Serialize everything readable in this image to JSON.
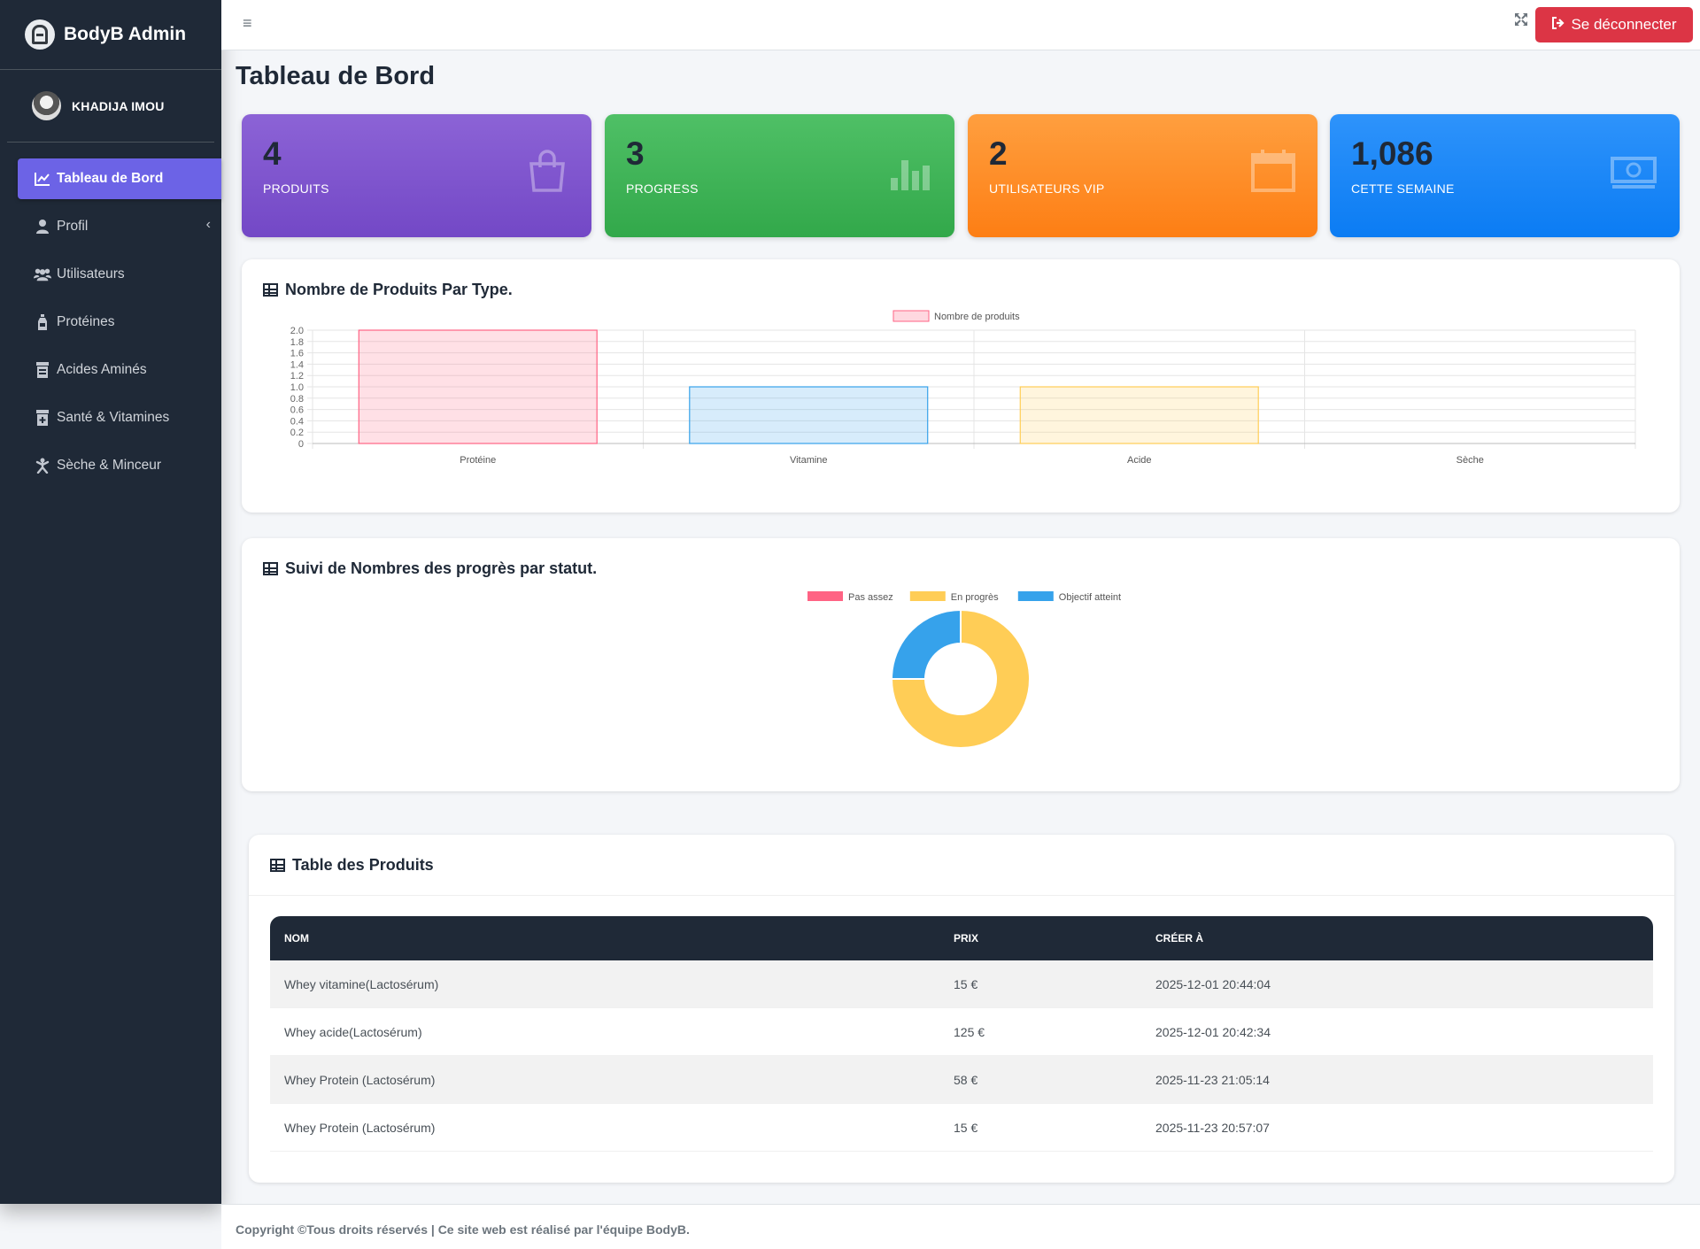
{
  "app": {
    "brand": "BodyB Admin"
  },
  "user": {
    "name": "KHADIJA IMOU"
  },
  "sidebar": {
    "items": [
      {
        "label": "Tableau de Bord",
        "icon": "chart-line-icon",
        "active": true
      },
      {
        "label": "Profil",
        "icon": "user-icon",
        "active": false
      },
      {
        "label": "Utilisateurs",
        "icon": "users-icon",
        "active": false
      },
      {
        "label": "Protéines",
        "icon": "bottle-icon",
        "active": false
      },
      {
        "label": "Acides Aminés",
        "icon": "jar-icon",
        "active": false
      },
      {
        "label": "Santé & Vitamines",
        "icon": "medical-jar-icon",
        "active": false
      },
      {
        "label": "Sèche & Minceur",
        "icon": "running-icon",
        "active": false
      }
    ]
  },
  "topbar": {
    "logout_label": "Se déconnecter"
  },
  "page": {
    "title": "Tableau de Bord"
  },
  "stats": [
    {
      "value": "4",
      "label": "PRODUITS",
      "icon": "shopping-bag-icon"
    },
    {
      "value": "3",
      "label": "PROGRESS",
      "icon": "bar-chart-icon"
    },
    {
      "value": "2",
      "label": "UTILISATEURS VIP",
      "icon": "calendar-icon"
    },
    {
      "value": "1,086",
      "label": "CETTE SEMAINE",
      "icon": "money-bill-icon"
    }
  ],
  "cards": {
    "bar_title": "Nombre de Produits Par Type.",
    "donut_title": "Suivi de Nombres des progrès par statut.",
    "table_title": "Table des Produits"
  },
  "chart_data": [
    {
      "type": "bar",
      "categories": [
        "Protéine",
        "Vitamine",
        "Acide",
        "Sèche"
      ],
      "series": [
        {
          "name": "Nombre de produits",
          "values": [
            2,
            1,
            1,
            0
          ]
        }
      ],
      "ylim": [
        0,
        2
      ],
      "yticks": [
        "0",
        "0.2",
        "0.4",
        "0.6",
        "0.8",
        "1.0",
        "1.2",
        "1.4",
        "1.6",
        "1.8",
        "2.0"
      ],
      "colors": [
        "#ff6384",
        "#36a2eb",
        "#ffcd56",
        "#4bc0c0"
      ],
      "legend": "top",
      "grid": true
    },
    {
      "type": "pie",
      "variant": "doughnut",
      "labels": [
        "Pas assez",
        "En progrès",
        "Objectif atteint"
      ],
      "values": [
        0,
        3,
        1
      ],
      "colors": [
        "#ff6384",
        "#ffcd56",
        "#36a2eb"
      ],
      "legend": "top"
    }
  ],
  "table": {
    "headers": [
      "NOM",
      "PRIX",
      "CRÉER À"
    ],
    "rows": [
      [
        "Whey vitamine(Lactosérum)",
        "15 €",
        "2025-12-01 20:44:04"
      ],
      [
        "Whey acide(Lactosérum)",
        "125 €",
        "2025-12-01 20:42:34"
      ],
      [
        "Whey Protein (Lactosérum)",
        "58 €",
        "2025-11-23 21:05:14"
      ],
      [
        "Whey Protein (Lactosérum)",
        "15 €",
        "2025-11-23 20:57:07"
      ]
    ]
  },
  "footer": {
    "text": "Copyright ©Tous droits réservés | Ce site web est réalisé par l'équipe BodyB."
  }
}
